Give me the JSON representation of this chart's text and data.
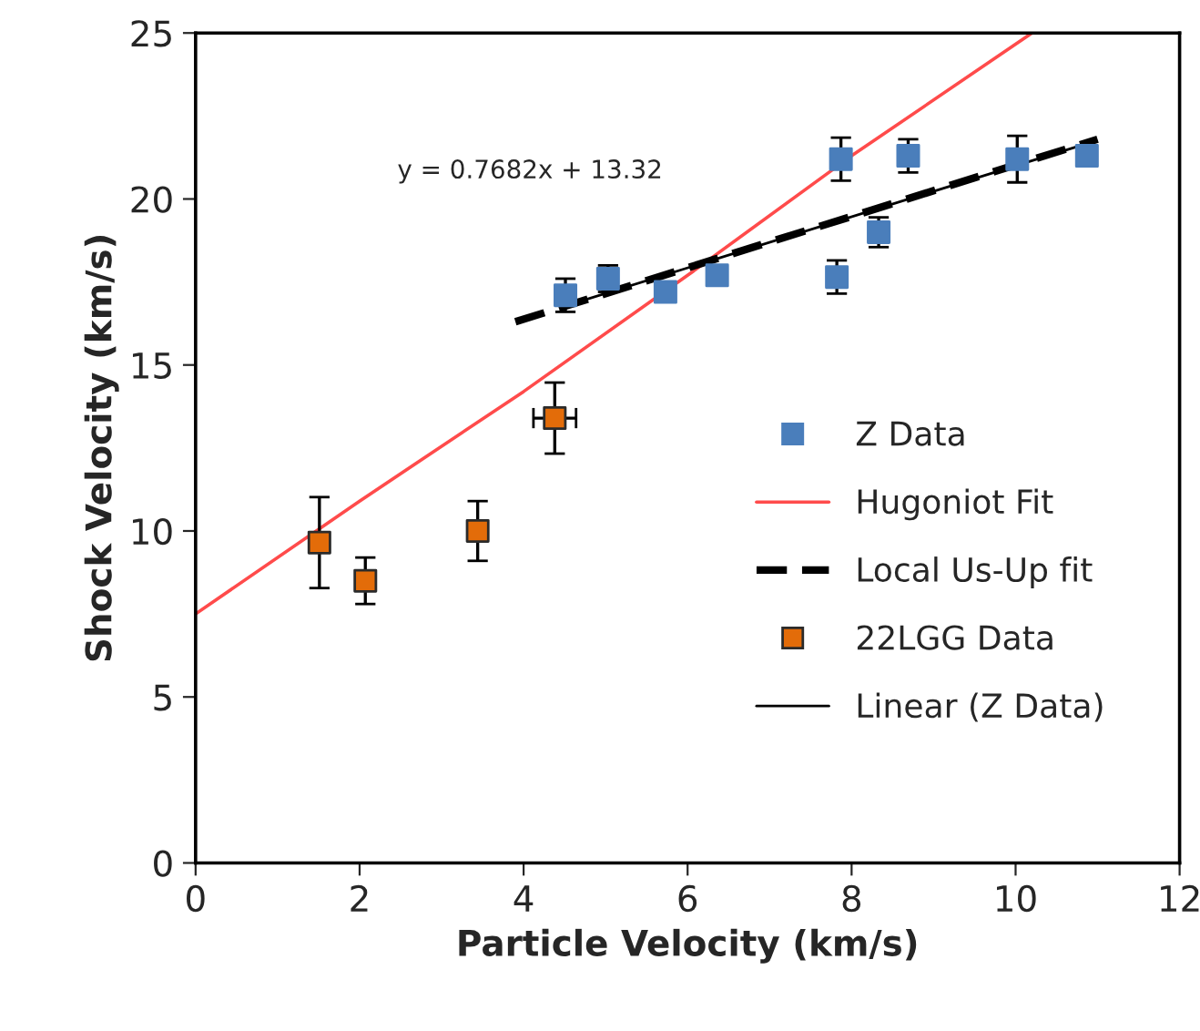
{
  "chart_data": {
    "type": "scatter",
    "xlabel": "Particle Velocity (km/s)",
    "ylabel": "Shock Velocity (km/s)",
    "xlim": [
      0,
      12
    ],
    "xticks": [
      0,
      2,
      4,
      6,
      8,
      10,
      12
    ],
    "ylim": [
      0,
      25
    ],
    "yticks": [
      0,
      5,
      10,
      15,
      20,
      25
    ],
    "grid": false,
    "legend": "right",
    "annotations": [
      "y = 0.7682x + 13.32"
    ],
    "series": [
      {
        "name": "Z Data",
        "marker": "square",
        "color": "#4a7ebb",
        "x": [
          4.51,
          5.03,
          5.73,
          6.36,
          7.82,
          7.87,
          8.33,
          8.69,
          10.02,
          10.87
        ],
        "values": [
          17.1,
          17.6,
          17.2,
          17.7,
          17.65,
          21.2,
          19.0,
          21.3,
          21.2,
          21.3
        ],
        "errors": [
          0.5,
          0.4,
          0.3,
          null,
          0.5,
          0.65,
          0.45,
          0.5,
          0.7,
          null
        ]
      },
      {
        "name": "Hugoniot Fit",
        "type": "line",
        "marker": "none",
        "line_style": "solid",
        "color": "#ff4b4b",
        "x": [
          0,
          2,
          4,
          6,
          8,
          10.2
        ],
        "values": [
          7.5,
          10.9,
          14.2,
          17.7,
          21.3,
          25
        ]
      },
      {
        "name": "Local Us-Up fit",
        "type": "line",
        "marker": "none",
        "line_style": "dashed",
        "color": "#000000",
        "x": [
          3.9,
          11
        ],
        "values": [
          16.3,
          21.8
        ]
      },
      {
        "name": "22LGG Data",
        "marker": "square",
        "color": "#e36c09",
        "x": [
          1.51,
          2.07,
          3.44,
          4.38
        ],
        "values": [
          9.65,
          8.5,
          10.0,
          13.4
        ],
        "errors": [
          1.37,
          0.7,
          0.9,
          1.07
        ],
        "xerrors": [
          null,
          null,
          null,
          0.26
        ]
      },
      {
        "name": "Linear (Z Data)",
        "type": "line",
        "marker": "none",
        "line_style": "solid",
        "color": "#000000",
        "x": [
          4.51,
          10.87
        ],
        "values": [
          16.78,
          21.67
        ]
      }
    ]
  }
}
